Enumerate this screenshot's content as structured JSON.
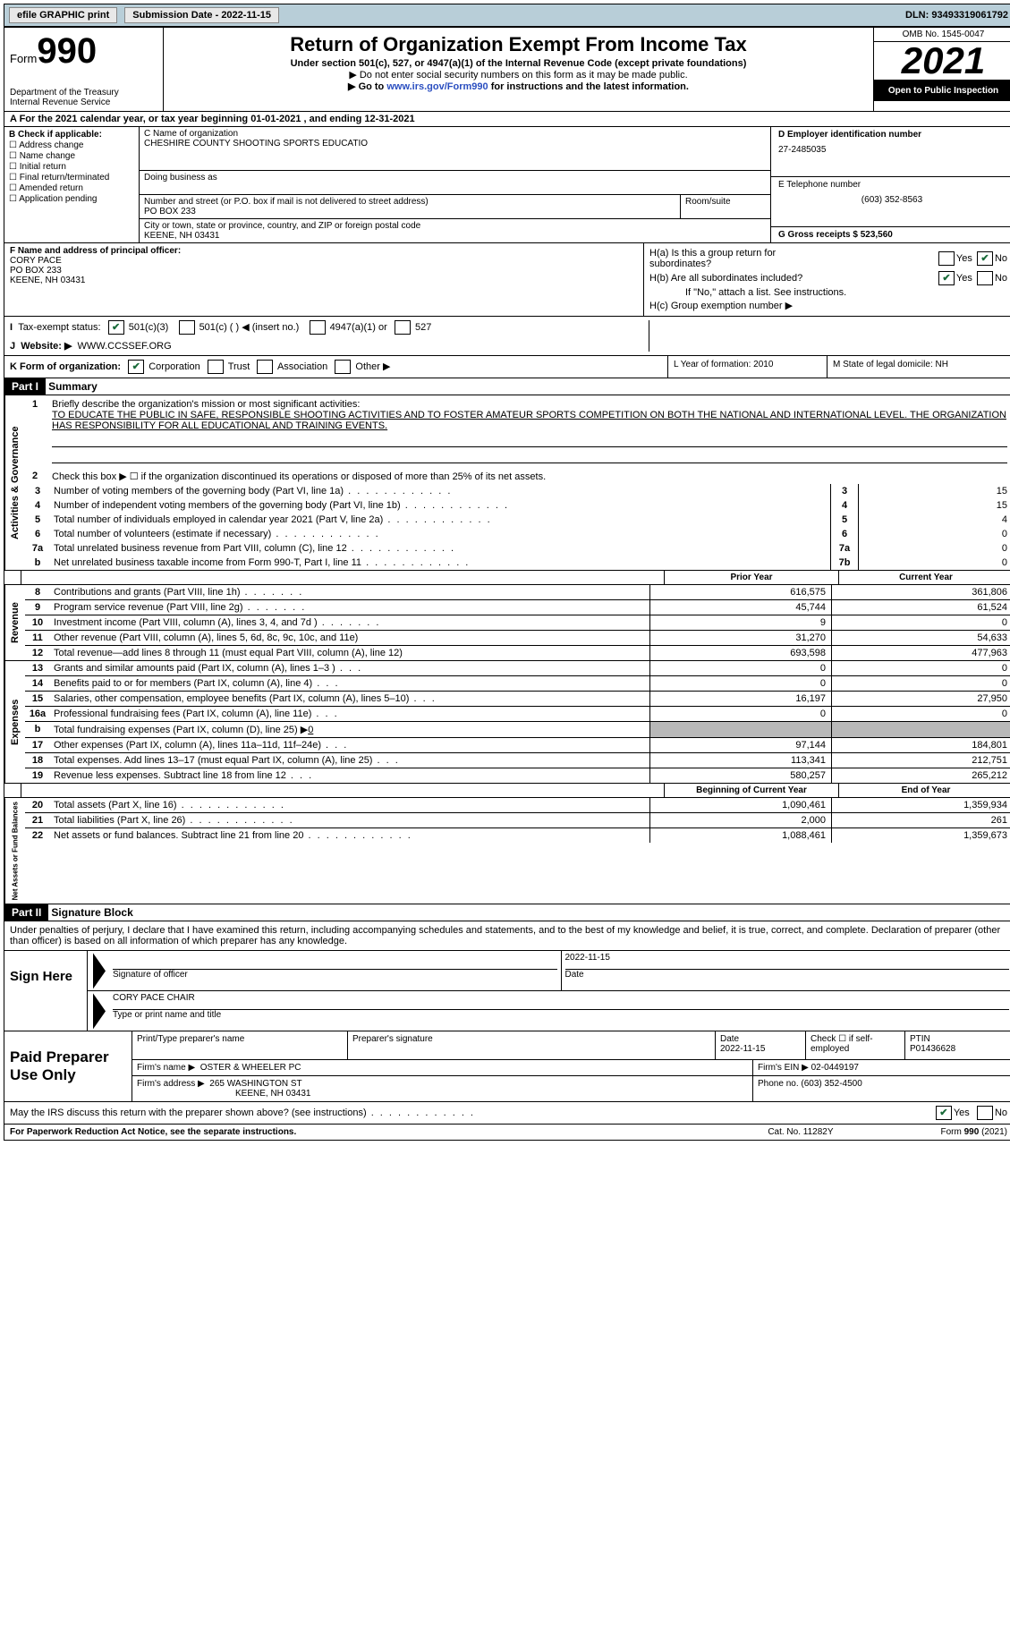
{
  "topbar": {
    "efile": "efile GRAPHIC print",
    "submission": "Submission Date - 2022-11-15",
    "dln": "DLN: 93493319061792"
  },
  "header": {
    "form_word": "Form",
    "form_num": "990",
    "dept": "Department of the Treasury",
    "irs": "Internal Revenue Service",
    "title": "Return of Organization Exempt From Income Tax",
    "sub": "Under section 501(c), 527, or 4947(a)(1) of the Internal Revenue Code (except private foundations)",
    "note1": "▶ Do not enter social security numbers on this form as it may be made public.",
    "note2_pre": "▶ Go to ",
    "note2_link": "www.irs.gov/Form990",
    "note2_post": " for instructions and the latest information.",
    "omb": "OMB No. 1545-0047",
    "year": "2021",
    "open": "Open to Public Inspection"
  },
  "rowA": "A  For the 2021 calendar year, or tax year beginning 01-01-2021   , and ending 12-31-2021",
  "colB": {
    "title": "B Check if applicable:",
    "opts": [
      "Address change",
      "Name change",
      "Initial return",
      "Final return/terminated",
      "Amended return",
      "Application pending"
    ]
  },
  "colC": {
    "name_lbl": "C Name of organization",
    "name": "CHESHIRE COUNTY SHOOTING SPORTS EDUCATIO",
    "dba_lbl": "Doing business as",
    "street_lbl": "Number and street (or P.O. box if mail is not delivered to street address)",
    "street": "PO BOX 233",
    "room_lbl": "Room/suite",
    "city_lbl": "City or town, state or province, country, and ZIP or foreign postal code",
    "city": "KEENE, NH  03431"
  },
  "colD": {
    "lbl": "D Employer identification number",
    "val": "27-2485035"
  },
  "colE": {
    "lbl": "E Telephone number",
    "val": "(603) 352-8563"
  },
  "colG": {
    "lbl": "G Gross receipts $",
    "val": "523,560"
  },
  "rowF": {
    "lbl": "F Name and address of principal officer:",
    "name": "CORY PACE",
    "addr1": "PO BOX 233",
    "addr2": "KEENE, NH  03431"
  },
  "rowH": {
    "a": "H(a)  Is this a group return for subordinates?",
    "b": "H(b)  Are all subordinates included?",
    "bnote": "If \"No,\" attach a list. See instructions.",
    "c": "H(c)  Group exemption number ▶"
  },
  "rowI": {
    "lbl": "Tax-exempt status:",
    "o1": "501(c)(3)",
    "o2": "501(c) (  ) ◀ (insert no.)",
    "o3": "4947(a)(1) or",
    "o4": "527"
  },
  "rowJ": {
    "lbl": "Website: ▶",
    "val": "WWW.CCSSEF.ORG"
  },
  "rowK": {
    "lbl": "K Form of organization:",
    "o1": "Corporation",
    "o2": "Trust",
    "o3": "Association",
    "o4": "Other ▶",
    "L": "L Year of formation: 2010",
    "M": "M State of legal domicile: NH"
  },
  "part1": {
    "hdr": "Part I",
    "title": "Summary"
  },
  "mission_lbl": "Briefly describe the organization's mission or most significant activities:",
  "mission": "TO EDUCATE THE PUBLIC IN SAFE, RESPONSIBLE SHOOTING ACTIVITIES AND TO FOSTER AMATEUR SPORTS COMPETITION ON BOTH THE NATIONAL AND INTERNATIONAL LEVEL. THE ORGANIZATION HAS RESPONSIBILITY FOR ALL EDUCATIONAL AND TRAINING EVENTS.",
  "line2": "Check this box ▶ ☐  if the organization discontinued its operations or disposed of more than 25% of its net assets.",
  "gov_lines": [
    {
      "n": "3",
      "t": "Number of voting members of the governing body (Part VI, line 1a)",
      "box": "3",
      "v": "15"
    },
    {
      "n": "4",
      "t": "Number of independent voting members of the governing body (Part VI, line 1b)",
      "box": "4",
      "v": "15"
    },
    {
      "n": "5",
      "t": "Total number of individuals employed in calendar year 2021 (Part V, line 2a)",
      "box": "5",
      "v": "4"
    },
    {
      "n": "6",
      "t": "Total number of volunteers (estimate if necessary)",
      "box": "6",
      "v": "0"
    },
    {
      "n": "7a",
      "t": "Total unrelated business revenue from Part VIII, column (C), line 12",
      "box": "7a",
      "v": "0"
    },
    {
      "n": "b",
      "t": "Net unrelated business taxable income from Form 990-T, Part I, line 11",
      "box": "7b",
      "v": "0"
    }
  ],
  "prior_hdr": "Prior Year",
  "current_hdr": "Current Year",
  "rev_lines": [
    {
      "n": "8",
      "t": "Contributions and grants (Part VIII, line 1h)",
      "py": "616,575",
      "cy": "361,806"
    },
    {
      "n": "9",
      "t": "Program service revenue (Part VIII, line 2g)",
      "py": "45,744",
      "cy": "61,524"
    },
    {
      "n": "10",
      "t": "Investment income (Part VIII, column (A), lines 3, 4, and 7d )",
      "py": "9",
      "cy": "0"
    },
    {
      "n": "11",
      "t": "Other revenue (Part VIII, column (A), lines 5, 6d, 8c, 9c, 10c, and 11e)",
      "py": "31,270",
      "cy": "54,633"
    },
    {
      "n": "12",
      "t": "Total revenue—add lines 8 through 11 (must equal Part VIII, column (A), line 12)",
      "py": "693,598",
      "cy": "477,963"
    }
  ],
  "exp_lines": [
    {
      "n": "13",
      "t": "Grants and similar amounts paid (Part IX, column (A), lines 1–3 )",
      "py": "0",
      "cy": "0"
    },
    {
      "n": "14",
      "t": "Benefits paid to or for members (Part IX, column (A), line 4)",
      "py": "0",
      "cy": "0"
    },
    {
      "n": "15",
      "t": "Salaries, other compensation, employee benefits (Part IX, column (A), lines 5–10)",
      "py": "16,197",
      "cy": "27,950"
    },
    {
      "n": "16a",
      "t": "Professional fundraising fees (Part IX, column (A), line 11e)",
      "py": "0",
      "cy": "0"
    }
  ],
  "exp_16b": {
    "n": "b",
    "t": "Total fundraising expenses (Part IX, column (D), line 25) ▶",
    "val": "0"
  },
  "exp_lines2": [
    {
      "n": "17",
      "t": "Other expenses (Part IX, column (A), lines 11a–11d, 11f–24e)",
      "py": "97,144",
      "cy": "184,801"
    },
    {
      "n": "18",
      "t": "Total expenses. Add lines 13–17 (must equal Part IX, column (A), line 25)",
      "py": "113,341",
      "cy": "212,751"
    },
    {
      "n": "19",
      "t": "Revenue less expenses. Subtract line 18 from line 12",
      "py": "580,257",
      "cy": "265,212"
    }
  ],
  "net_hdr1": "Beginning of Current Year",
  "net_hdr2": "End of Year",
  "net_lines": [
    {
      "n": "20",
      "t": "Total assets (Part X, line 16)",
      "py": "1,090,461",
      "cy": "1,359,934"
    },
    {
      "n": "21",
      "t": "Total liabilities (Part X, line 26)",
      "py": "2,000",
      "cy": "261"
    },
    {
      "n": "22",
      "t": "Net assets or fund balances. Subtract line 21 from line 20",
      "py": "1,088,461",
      "cy": "1,359,673"
    }
  ],
  "part2": {
    "hdr": "Part II",
    "title": "Signature Block"
  },
  "sig_text": "Under penalties of perjury, I declare that I have examined this return, including accompanying schedules and statements, and to the best of my knowledge and belief, it is true, correct, and complete. Declaration of preparer (other than officer) is based on all information of which preparer has any knowledge.",
  "sign": {
    "here": "Sign Here",
    "sig_lbl": "Signature of officer",
    "date_lbl": "Date",
    "date": "2022-11-15",
    "name": "CORY PACE CHAIR",
    "name_lbl": "Type or print name and title"
  },
  "paid": {
    "title": "Paid Preparer Use Only",
    "r1": {
      "c1": "Print/Type preparer's name",
      "c2": "Preparer's signature",
      "c3": "Date",
      "c3v": "2022-11-15",
      "c4": "Check ☐ if self-employed",
      "c5": "PTIN",
      "c5v": "P01436628"
    },
    "r2": {
      "lbl": "Firm's name    ▶",
      "val": "OSTER & WHEELER PC",
      "ein_lbl": "Firm's EIN ▶",
      "ein": "02-0449197"
    },
    "r3": {
      "lbl": "Firm's address ▶",
      "val1": "265 WASHINGTON ST",
      "val2": "KEENE, NH  03431",
      "ph_lbl": "Phone no.",
      "ph": "(603) 352-4500"
    }
  },
  "discuss": "May the IRS discuss this return with the preparer shown above? (see instructions)",
  "footer": {
    "l": "For Paperwork Reduction Act Notice, see the separate instructions.",
    "m": "Cat. No. 11282Y",
    "r": "Form 990 (2021)"
  },
  "vtabs": {
    "gov": "Activities & Governance",
    "rev": "Revenue",
    "exp": "Expenses",
    "net": "Net Assets or Fund Balances"
  },
  "yn": {
    "yes": "Yes",
    "no": "No"
  }
}
